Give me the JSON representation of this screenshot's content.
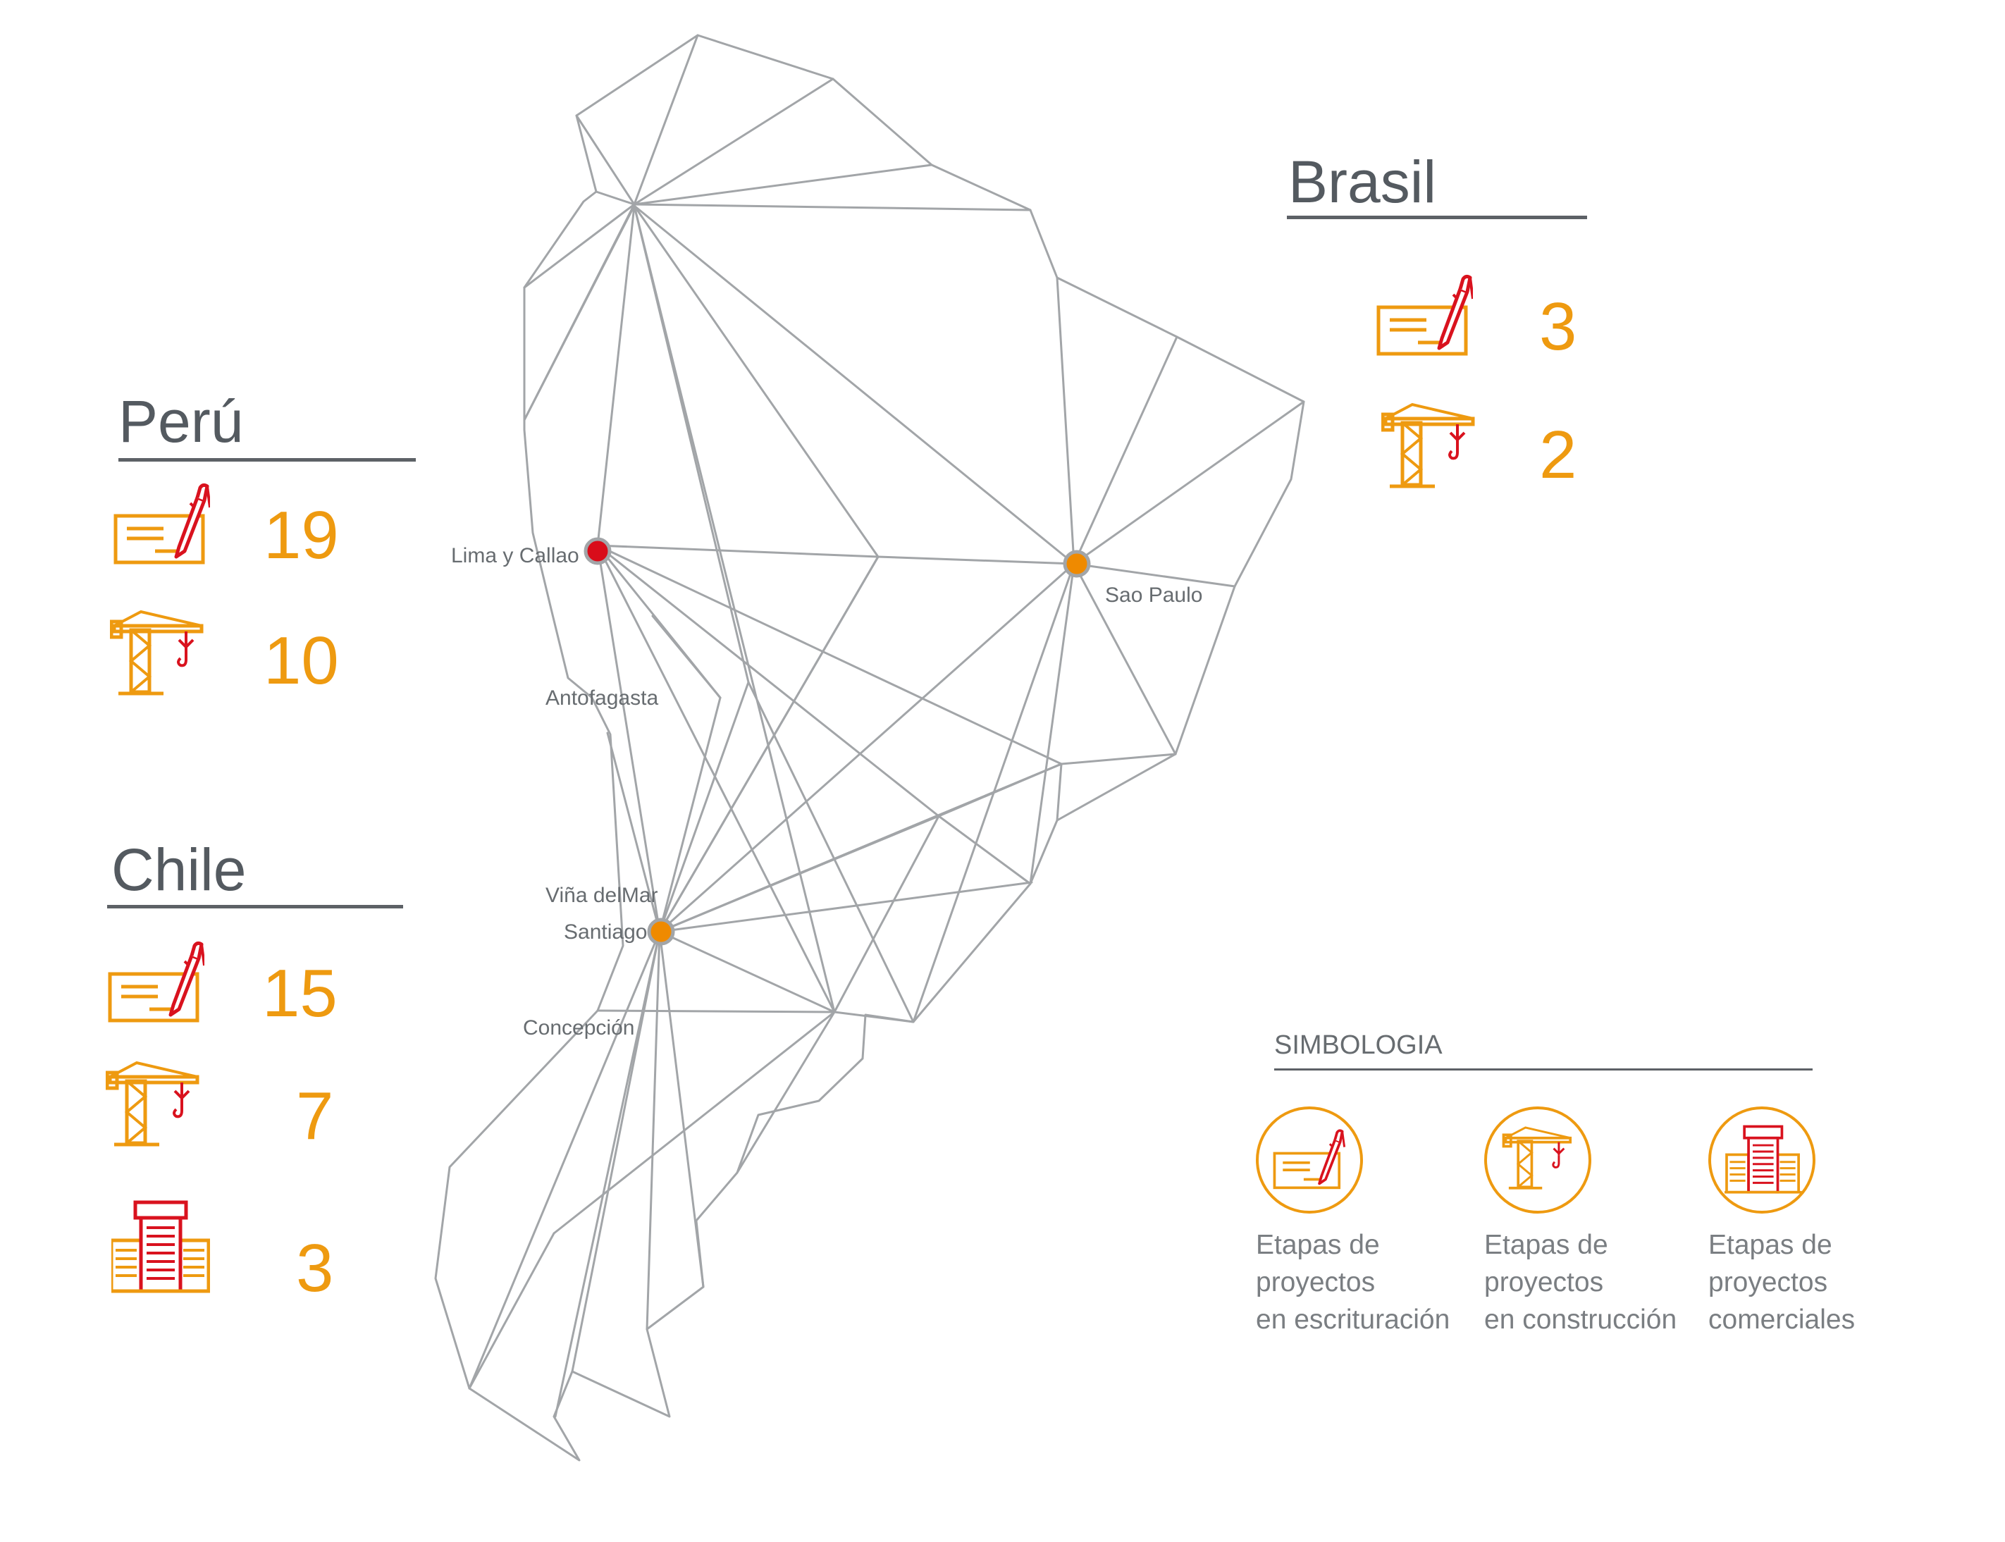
{
  "colors": {
    "line": "#a2a5a8",
    "accent_orange": "#ee9a10",
    "accent_red": "#d9121e",
    "marker_orange": "#ef8a00",
    "marker_red": "#d90d1a",
    "text_dark": "#545a60"
  },
  "countries": {
    "peru": {
      "name": "Perú",
      "escrituracion": "19",
      "construccion": "10"
    },
    "brasil": {
      "name": "Brasil",
      "escrituracion": "3",
      "construccion": "2"
    },
    "chile": {
      "name": "Chile",
      "escrituracion": "15",
      "construccion": "7",
      "comerciales": "3"
    }
  },
  "cities": {
    "lima": "Lima y Callao",
    "sao_paulo": "Sao Paulo",
    "antofagasta": "Antofagasta",
    "vina": "Viña delMar",
    "santiago": "Santiago",
    "concepcion": "Concepción"
  },
  "markers": [
    {
      "city": "Lima y Callao",
      "color": "#d90d1a"
    },
    {
      "city": "Sao Paulo",
      "color": "#ef8a00"
    },
    {
      "city": "Santiago",
      "color": "#ef8a00"
    }
  ],
  "legend": {
    "title": "SIMBOLOGIA",
    "items": [
      {
        "icon": "signing-contract-icon",
        "lines": [
          "Etapas de",
          "proyectos",
          "en escrituración"
        ]
      },
      {
        "icon": "construction-crane-icon",
        "lines": [
          "Etapas de",
          "proyectos",
          "en construcción"
        ]
      },
      {
        "icon": "commercial-buildings-icon",
        "lines": [
          "Etapas de",
          "proyectos",
          "comerciales"
        ]
      }
    ]
  }
}
